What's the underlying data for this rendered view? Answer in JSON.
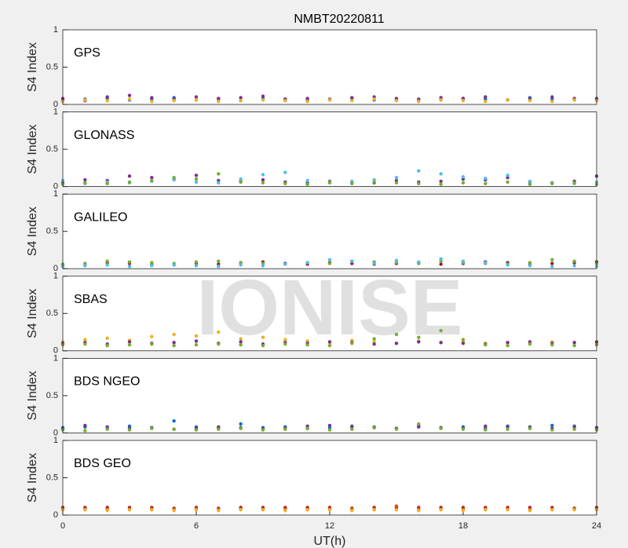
{
  "chart_data": [
    {
      "type": "scatter",
      "title": "NMBT20220811",
      "annotation": "GPS",
      "ylabel": "S4 Index",
      "ylim": [
        0,
        1
      ],
      "yticks": [
        0,
        0.5,
        1
      ],
      "xlim": [
        0,
        24
      ],
      "x": [
        0,
        1,
        2,
        3,
        4,
        5,
        6,
        7,
        8,
        9,
        10,
        11,
        12,
        13,
        14,
        15,
        16,
        17,
        18,
        19,
        20,
        21,
        22,
        23,
        24
      ],
      "series": [
        {
          "color": "#0072BD",
          "values": [
            0.06,
            0.07,
            0.08,
            0.06,
            0.07,
            0.09,
            0.06,
            0.07,
            0.05,
            0.08,
            0.07,
            0.06,
            0.07,
            0.08,
            0.06,
            0.07,
            0.05,
            0.06,
            0.08,
            0.07,
            0.06,
            0.09,
            0.07,
            0.06,
            0.08
          ]
        },
        {
          "color": "#7E2F8E",
          "values": [
            0.08,
            0.05,
            0.1,
            0.12,
            0.09,
            0.07,
            0.1,
            0.08,
            0.09,
            0.11,
            0.07,
            0.08,
            0.06,
            0.09,
            0.1,
            0.08,
            0.07,
            0.09,
            0.08,
            0.1,
            0.06,
            0.07,
            0.1,
            0.08,
            0.07
          ]
        },
        {
          "color": "#EDB120",
          "values": [
            0.04,
            0.06,
            0.05,
            0.07,
            0.04,
            0.05,
            0.06,
            0.04,
            0.05,
            0.06,
            0.05,
            0.04,
            0.06,
            0.05,
            0.07,
            0.05,
            0.04,
            0.06,
            0.05,
            0.04,
            0.06,
            0.05,
            0.04,
            0.06,
            0.05
          ]
        }
      ]
    },
    {
      "type": "scatter",
      "annotation": "GLONASS",
      "ylabel": "S4 Index",
      "ylim": [
        0,
        1
      ],
      "yticks": [
        0,
        0.5,
        1
      ],
      "xlim": [
        0,
        24
      ],
      "x": [
        0,
        1,
        2,
        3,
        4,
        5,
        6,
        7,
        8,
        9,
        10,
        11,
        12,
        13,
        14,
        15,
        16,
        17,
        18,
        19,
        20,
        21,
        22,
        23,
        24
      ],
      "series": [
        {
          "color": "#7E2F8E",
          "values": [
            0.05,
            0.09,
            0.08,
            0.14,
            0.12,
            0.1,
            0.15,
            0.08,
            0.07,
            0.09,
            0.06,
            0.05,
            0.07,
            0.06,
            0.05,
            0.08,
            0.06,
            0.07,
            0.1,
            0.09,
            0.12,
            0.06,
            0.05,
            0.07,
            0.14
          ]
        },
        {
          "color": "#4DBEEE",
          "values": [
            0.08,
            0.04,
            0.06,
            0.05,
            0.07,
            0.09,
            0.06,
            0.05,
            0.1,
            0.16,
            0.19,
            0.08,
            0.06,
            0.07,
            0.09,
            0.12,
            0.21,
            0.17,
            0.13,
            0.11,
            0.15,
            0.07,
            0.05,
            0.04,
            0.06
          ]
        },
        {
          "color": "#77AC30",
          "values": [
            0.03,
            0.05,
            0.04,
            0.06,
            0.08,
            0.12,
            0.1,
            0.17,
            0.06,
            0.05,
            0.04,
            0.03,
            0.05,
            0.04,
            0.06,
            0.05,
            0.04,
            0.03,
            0.05,
            0.04,
            0.06,
            0.03,
            0.04,
            0.05,
            0.03
          ]
        }
      ]
    },
    {
      "type": "scatter",
      "annotation": "GALILEO",
      "ylabel": "S4 Index",
      "ylim": [
        0,
        1
      ],
      "yticks": [
        0,
        0.5,
        1
      ],
      "xlim": [
        0,
        24
      ],
      "x": [
        0,
        1,
        2,
        3,
        4,
        5,
        6,
        7,
        8,
        9,
        10,
        11,
        12,
        13,
        14,
        15,
        16,
        17,
        18,
        19,
        20,
        21,
        22,
        23,
        24
      ],
      "series": [
        {
          "color": "#A2142F",
          "values": [
            0.05,
            0.06,
            0.08,
            0.07,
            0.06,
            0.05,
            0.07,
            0.06,
            0.08,
            0.09,
            0.07,
            0.06,
            0.08,
            0.07,
            0.06,
            0.07,
            0.08,
            0.06,
            0.07,
            0.09,
            0.08,
            0.06,
            0.07,
            0.08,
            0.09
          ]
        },
        {
          "color": "#77AC30",
          "values": [
            0.06,
            0.07,
            0.1,
            0.09,
            0.08,
            0.07,
            0.09,
            0.1,
            0.08,
            0.07,
            0.06,
            0.08,
            0.07,
            0.1,
            0.09,
            0.08,
            0.07,
            0.1,
            0.08,
            0.07,
            0.06,
            0.08,
            0.12,
            0.1,
            0.07
          ]
        },
        {
          "color": "#4DBEEE",
          "values": [
            0.03,
            0.04,
            0.05,
            0.03,
            0.04,
            0.05,
            0.04,
            0.03,
            0.05,
            0.04,
            0.06,
            0.08,
            0.12,
            0.1,
            0.07,
            0.11,
            0.09,
            0.13,
            0.1,
            0.08,
            0.05,
            0.04,
            0.03,
            0.04,
            0.03
          ]
        }
      ]
    },
    {
      "type": "scatter",
      "annotation": "SBAS",
      "watermark": "IONISE",
      "ylabel": "S4 Index",
      "ylim": [
        0,
        1
      ],
      "yticks": [
        0,
        0.5,
        1
      ],
      "xlim": [
        0,
        24
      ],
      "x": [
        0,
        1,
        2,
        3,
        4,
        5,
        6,
        7,
        8,
        9,
        10,
        11,
        12,
        13,
        14,
        15,
        16,
        17,
        18,
        19,
        20,
        21,
        22,
        23,
        24
      ],
      "series": [
        {
          "color": "#EDB120",
          "values": [
            0.12,
            0.15,
            0.17,
            0.14,
            0.19,
            0.22,
            0.2,
            0.25,
            0.16,
            0.18,
            0.15,
            0.13,
            0.11,
            0.14,
            0.12,
            0.1,
            0.13,
            0.11,
            0.12,
            0.1,
            0.11,
            0.1,
            0.12,
            0.11,
            0.1
          ]
        },
        {
          "color": "#7E2F8E",
          "values": [
            0.1,
            0.11,
            0.09,
            0.12,
            0.1,
            0.11,
            0.13,
            0.1,
            0.12,
            0.09,
            0.11,
            0.1,
            0.12,
            0.11,
            0.09,
            0.1,
            0.12,
            0.11,
            0.1,
            0.09,
            0.11,
            0.12,
            0.1,
            0.11,
            0.12
          ]
        },
        {
          "color": "#77AC30",
          "values": [
            0.08,
            0.09,
            0.07,
            0.08,
            0.09,
            0.07,
            0.08,
            0.09,
            0.08,
            0.07,
            0.09,
            0.08,
            0.07,
            0.1,
            0.16,
            0.22,
            0.18,
            0.27,
            0.15,
            0.08,
            0.07,
            0.09,
            0.08,
            0.07,
            0.08
          ]
        }
      ]
    },
    {
      "type": "scatter",
      "annotation": "BDS NGEO",
      "ylabel": "S4 Index",
      "ylim": [
        0,
        1
      ],
      "yticks": [
        0,
        0.5,
        1
      ],
      "xlim": [
        0,
        24
      ],
      "x": [
        0,
        1,
        2,
        3,
        4,
        5,
        6,
        7,
        8,
        9,
        10,
        11,
        12,
        13,
        14,
        15,
        16,
        17,
        18,
        19,
        20,
        21,
        22,
        23,
        24
      ],
      "series": [
        {
          "color": "#0072BD",
          "values": [
            0.07,
            0.08,
            0.06,
            0.09,
            0.07,
            0.16,
            0.08,
            0.06,
            0.12,
            0.07,
            0.08,
            0.06,
            0.07,
            0.09,
            0.08,
            0.06,
            0.1,
            0.07,
            0.08,
            0.06,
            0.09,
            0.08,
            0.1,
            0.09,
            0.07
          ]
        },
        {
          "color": "#7E2F8E",
          "values": [
            0.05,
            0.1,
            0.08,
            0.06,
            0.07,
            0.05,
            0.06,
            0.08,
            0.07,
            0.05,
            0.06,
            0.09,
            0.1,
            0.08,
            0.07,
            0.06,
            0.08,
            0.07,
            0.06,
            0.09,
            0.08,
            0.07,
            0.06,
            0.08,
            0.07
          ]
        },
        {
          "color": "#77AC30",
          "values": [
            0.04,
            0.03,
            0.05,
            0.04,
            0.06,
            0.05,
            0.04,
            0.05,
            0.06,
            0.04,
            0.05,
            0.06,
            0.04,
            0.05,
            0.07,
            0.05,
            0.12,
            0.06,
            0.05,
            0.04,
            0.05,
            0.06,
            0.04,
            0.05,
            0.04
          ]
        }
      ]
    },
    {
      "type": "scatter",
      "annotation": "BDS GEO",
      "ylabel": "S4 Index",
      "xlabel": "UT(h)",
      "ylim": [
        0,
        1
      ],
      "yticks": [
        0,
        0.5,
        1
      ],
      "xlim": [
        0,
        24
      ],
      "xticks": [
        0,
        6,
        12,
        18,
        24
      ],
      "x": [
        0,
        1,
        2,
        3,
        4,
        5,
        6,
        7,
        8,
        9,
        10,
        11,
        12,
        13,
        14,
        15,
        16,
        17,
        18,
        19,
        20,
        21,
        22,
        23,
        24
      ],
      "series": [
        {
          "color": "#A2142F",
          "values": [
            0.1,
            0.1,
            0.1,
            0.1,
            0.1,
            0.09,
            0.1,
            0.09,
            0.1,
            0.1,
            0.1,
            0.1,
            0.1,
            0.09,
            0.1,
            0.1,
            0.1,
            0.1,
            0.1,
            0.1,
            0.1,
            0.1,
            0.1,
            0.09,
            0.1
          ]
        },
        {
          "color": "#D95319",
          "values": [
            0.08,
            0.08,
            0.08,
            0.08,
            0.08,
            0.08,
            0.08,
            0.08,
            0.08,
            0.08,
            0.08,
            0.08,
            0.08,
            0.08,
            0.08,
            0.12,
            0.08,
            0.08,
            0.08,
            0.08,
            0.08,
            0.08,
            0.08,
            0.08,
            0.08
          ]
        },
        {
          "color": "#EDB120",
          "values": [
            0.07,
            0.07,
            0.06,
            0.07,
            0.07,
            0.06,
            0.07,
            0.06,
            0.07,
            0.07,
            0.06,
            0.07,
            0.07,
            0.06,
            0.07,
            0.07,
            0.06,
            0.07,
            0.06,
            0.07,
            0.07,
            0.06,
            0.07,
            0.07,
            0.07
          ]
        }
      ]
    }
  ]
}
